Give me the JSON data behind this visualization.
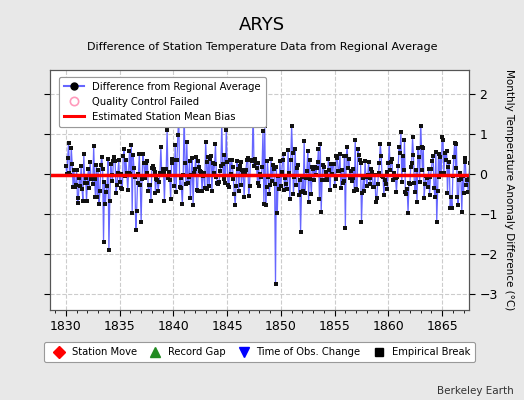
{
  "title": "ARYS",
  "subtitle": "Difference of Station Temperature Data from Regional Average",
  "ylabel": "Monthly Temperature Anomaly Difference (°C)",
  "xlabel_years": [
    1830,
    1835,
    1840,
    1845,
    1850,
    1855,
    1860,
    1865
  ],
  "xlim": [
    1828.5,
    1867.5
  ],
  "ylim": [
    -3.4,
    2.6
  ],
  "yticks": [
    -3,
    -2,
    -1,
    0,
    1,
    2
  ],
  "bias_value": -0.02,
  "background_color": "#e8e8e8",
  "plot_bg_color": "#ffffff",
  "line_color": "#6666ff",
  "dot_color": "#111111",
  "bias_color": "#ff0000",
  "grid_color": "#cccccc",
  "watermark": "Berkeley Earth",
  "legend1_label": "Difference from Regional Average",
  "legend2_label": "Quality Control Failed",
  "legend3_label": "Estimated Station Mean Bias",
  "legend4_label": "Station Move",
  "legend5_label": "Record Gap",
  "legend6_label": "Time of Obs. Change",
  "legend7_label": "Empirical Break",
  "seed": 42,
  "n_points": 456,
  "x_start": 1830.0,
  "x_end": 1868.0
}
